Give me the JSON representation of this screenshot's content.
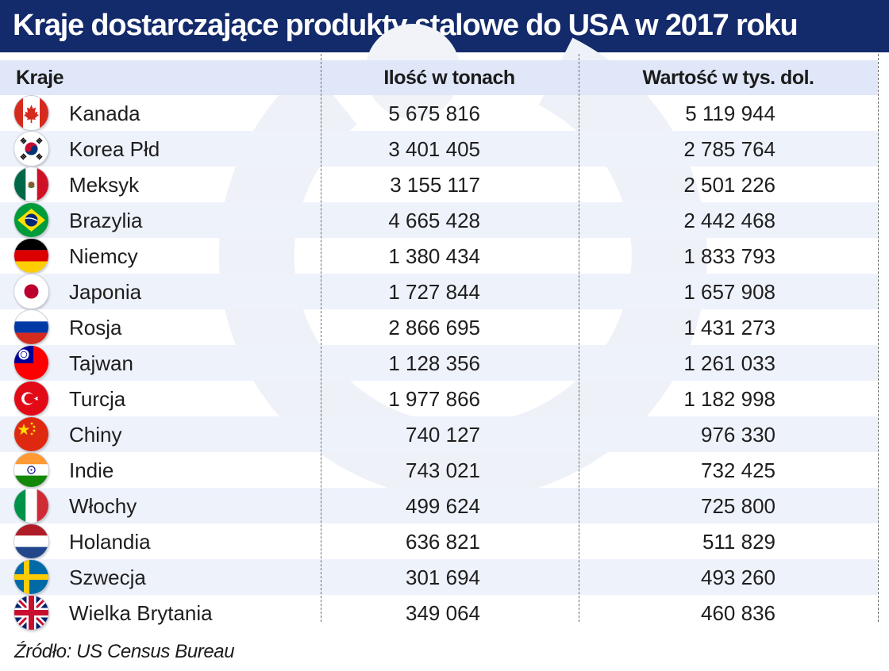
{
  "title": "Kraje dostarczające produkty stalowe do USA w 2017 roku",
  "source": "Źródło: US Census Bureau",
  "colors": {
    "header_bar": "#132a6b",
    "column_header_bg": "#dfe7f8",
    "alt_row_bg": "#eef2fb"
  },
  "chart_data": {
    "type": "table",
    "title": "Kraje dostarczające produkty stalowe do USA w 2017 roku",
    "columns": [
      "Kraje",
      "Ilość w tonach",
      "Wartość w tys. dol."
    ],
    "rows": [
      {
        "country": "Kanada",
        "flag": "canada-flag-icon",
        "qty": "5 675 816",
        "value": "5 119 944"
      },
      {
        "country": "Korea Płd",
        "flag": "south-korea-flag-icon",
        "qty": "3 401 405",
        "value": "2 785 764"
      },
      {
        "country": "Meksyk",
        "flag": "mexico-flag-icon",
        "qty": "3 155 117",
        "value": "2 501 226"
      },
      {
        "country": "Brazylia",
        "flag": "brazil-flag-icon",
        "qty": "4 665 428",
        "value": "2 442 468"
      },
      {
        "country": "Niemcy",
        "flag": "germany-flag-icon",
        "qty": "1 380 434",
        "value": "1 833 793"
      },
      {
        "country": "Japonia",
        "flag": "japan-flag-icon",
        "qty": "1 727 844",
        "value": "1 657 908"
      },
      {
        "country": "Rosja",
        "flag": "russia-flag-icon",
        "qty": "2 866 695",
        "value": "1 431 273"
      },
      {
        "country": "Tajwan",
        "flag": "taiwan-flag-icon",
        "qty": "1 128 356",
        "value": "1 261 033"
      },
      {
        "country": "Turcja",
        "flag": "turkey-flag-icon",
        "qty": "1 977 866",
        "value": "1 182 998"
      },
      {
        "country": "Chiny",
        "flag": "china-flag-icon",
        "qty": "740 127",
        "value": "976 330"
      },
      {
        "country": "Indie",
        "flag": "india-flag-icon",
        "qty": "743 021",
        "value": "732 425"
      },
      {
        "country": "Włochy",
        "flag": "italy-flag-icon",
        "qty": "499 624",
        "value": "725 800"
      },
      {
        "country": "Holandia",
        "flag": "netherlands-flag-icon",
        "qty": "636 821",
        "value": "511 829"
      },
      {
        "country": "Szwecja",
        "flag": "sweden-flag-icon",
        "qty": "301 694",
        "value": "493 260"
      },
      {
        "country": "Wielka Brytania",
        "flag": "uk-flag-icon",
        "qty": "349 064",
        "value": "460 836"
      }
    ]
  }
}
